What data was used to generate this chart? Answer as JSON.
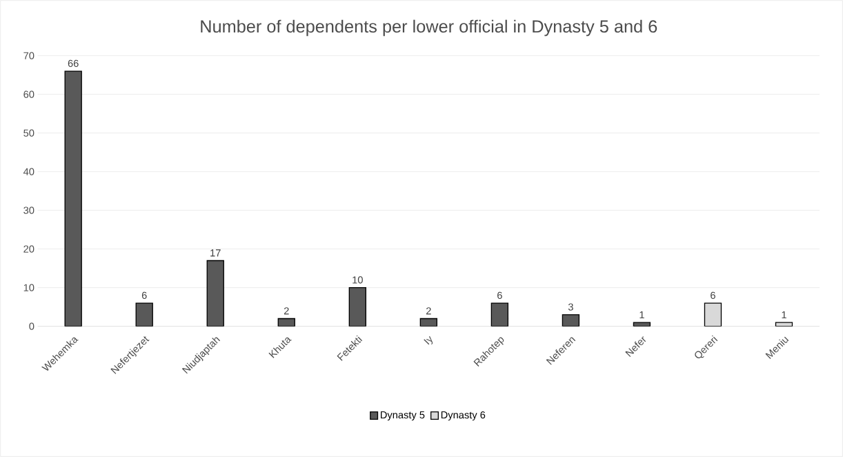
{
  "chart_data": {
    "type": "bar",
    "title": "Number of dependents per lower official in Dynasty 5 and 6",
    "categories": [
      "Wehemka",
      "Nefertjezet",
      "Niudjaptah",
      "Khuta",
      "Fetekti",
      "Iy",
      "Rahotep",
      "Neferen",
      "Nefer",
      "Qereri",
      "Meniu"
    ],
    "series": [
      {
        "name": "Dynasty 5",
        "color": "#595959",
        "values": [
          66,
          6,
          17,
          2,
          10,
          2,
          6,
          3,
          1,
          null,
          null
        ]
      },
      {
        "name": "Dynasty 6",
        "color": "#d9d9d9",
        "values": [
          null,
          null,
          null,
          null,
          null,
          null,
          null,
          null,
          null,
          6,
          1
        ]
      }
    ],
    "ylim": [
      0,
      70
    ],
    "yticks": [
      0,
      10,
      20,
      30,
      40,
      50,
      60,
      70
    ],
    "grid": "y",
    "legend": "bottom",
    "data_labels": true
  }
}
